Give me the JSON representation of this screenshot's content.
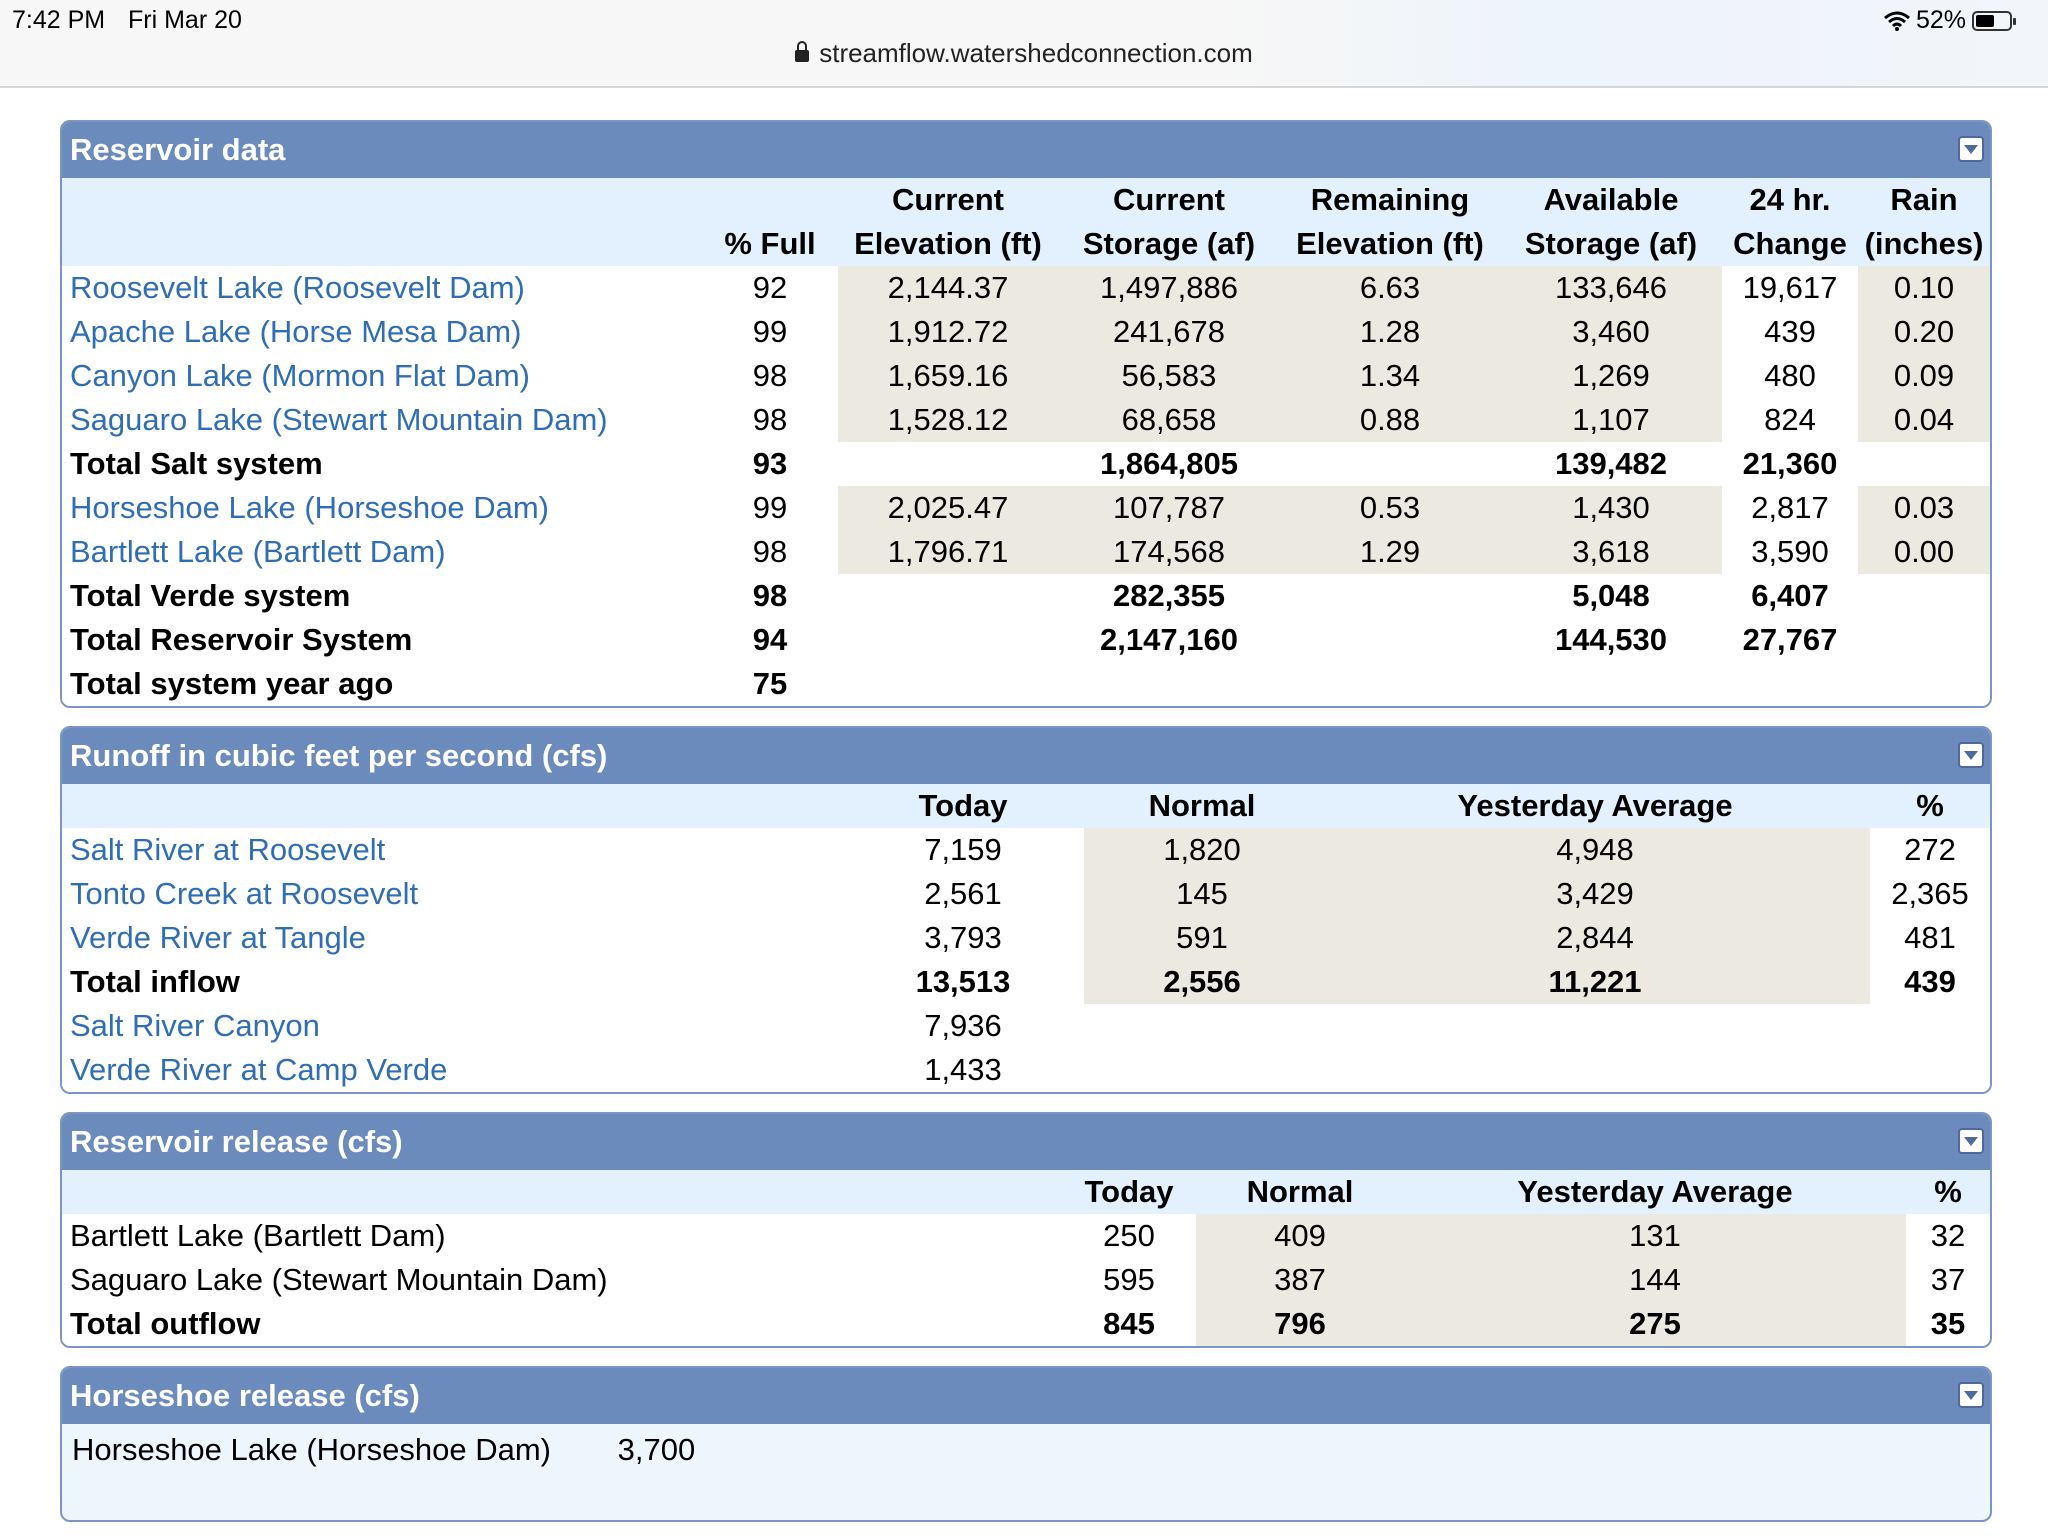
{
  "status": {
    "time": "7:42 PM",
    "date": "Fri Mar 20",
    "battery": "52%",
    "url": "streamflow.watershedconnection.com"
  },
  "reservoir": {
    "title": "Reservoir data",
    "headers": [
      {
        "l1": "",
        "l2": "% Full"
      },
      {
        "l1": "Current",
        "l2": "Elevation (ft)"
      },
      {
        "l1": "Current",
        "l2": "Storage (af)"
      },
      {
        "l1": "Remaining",
        "l2": "Elevation (ft)"
      },
      {
        "l1": "Available",
        "l2": "Storage (af)"
      },
      {
        "l1": "24 hr.",
        "l2": "Change"
      },
      {
        "l1": "Rain",
        "l2": "(inches)"
      }
    ],
    "rows": [
      {
        "name": "Roosevelt Lake (Roosevelt Dam)",
        "link": true,
        "total": false,
        "v": [
          "92",
          "2,144.37",
          "1,497,886",
          "6.63",
          "133,646",
          "19,617",
          "0.10"
        ]
      },
      {
        "name": "Apache Lake (Horse Mesa Dam)",
        "link": true,
        "total": false,
        "v": [
          "99",
          "1,912.72",
          "241,678",
          "1.28",
          "3,460",
          "439",
          "0.20"
        ]
      },
      {
        "name": "Canyon Lake (Mormon Flat Dam)",
        "link": true,
        "total": false,
        "v": [
          "98",
          "1,659.16",
          "56,583",
          "1.34",
          "1,269",
          "480",
          "0.09"
        ]
      },
      {
        "name": "Saguaro Lake (Stewart Mountain Dam)",
        "link": true,
        "total": false,
        "v": [
          "98",
          "1,528.12",
          "68,658",
          "0.88",
          "1,107",
          "824",
          "0.04"
        ]
      },
      {
        "name": "Total Salt system",
        "link": false,
        "total": true,
        "v": [
          "93",
          "",
          "1,864,805",
          "",
          "139,482",
          "21,360",
          ""
        ]
      },
      {
        "name": "Horseshoe Lake (Horseshoe Dam)",
        "link": true,
        "total": false,
        "v": [
          "99",
          "2,025.47",
          "107,787",
          "0.53",
          "1,430",
          "2,817",
          "0.03"
        ]
      },
      {
        "name": "Bartlett Lake (Bartlett Dam)",
        "link": true,
        "total": false,
        "v": [
          "98",
          "1,796.71",
          "174,568",
          "1.29",
          "3,618",
          "3,590",
          "0.00"
        ]
      },
      {
        "name": "Total Verde system",
        "link": false,
        "total": true,
        "v": [
          "98",
          "",
          "282,355",
          "",
          "5,048",
          "6,407",
          ""
        ]
      },
      {
        "name": "Total Reservoir System",
        "link": false,
        "total": true,
        "v": [
          "94",
          "",
          "2,147,160",
          "",
          "144,530",
          "27,767",
          ""
        ]
      },
      {
        "name": "Total system year ago",
        "link": false,
        "total": true,
        "v": [
          "75",
          "",
          "",
          "",
          "",
          "",
          ""
        ]
      }
    ]
  },
  "runoff": {
    "title": "Runoff in cubic feet per second (cfs)",
    "headers": [
      "Today",
      "Normal",
      "Yesterday Average",
      "%"
    ],
    "rows": [
      {
        "name": "Salt River at Roosevelt",
        "link": true,
        "total": false,
        "shade": true,
        "v": [
          "7,159",
          "1,820",
          "4,948",
          "272"
        ]
      },
      {
        "name": "Tonto Creek at Roosevelt",
        "link": true,
        "total": false,
        "shade": true,
        "v": [
          "2,561",
          "145",
          "3,429",
          "2,365"
        ]
      },
      {
        "name": "Verde River at Tangle",
        "link": true,
        "total": false,
        "shade": true,
        "v": [
          "3,793",
          "591",
          "2,844",
          "481"
        ]
      },
      {
        "name": "Total inflow",
        "link": false,
        "total": true,
        "shade": true,
        "v": [
          "13,513",
          "2,556",
          "11,221",
          "439"
        ]
      },
      {
        "name": "Salt River Canyon",
        "link": true,
        "total": false,
        "shade": false,
        "v": [
          "7,936",
          "",
          "",
          ""
        ]
      },
      {
        "name": "Verde River at Camp Verde",
        "link": true,
        "total": false,
        "shade": false,
        "v": [
          "1,433",
          "",
          "",
          ""
        ]
      }
    ]
  },
  "release": {
    "title": "Reservoir release (cfs)",
    "headers": [
      "Today",
      "Normal",
      "Yesterday Average",
      "%"
    ],
    "rows": [
      {
        "name": "Bartlett Lake (Bartlett Dam)",
        "total": false,
        "v": [
          "250",
          "409",
          "131",
          "32"
        ]
      },
      {
        "name": "Saguaro Lake (Stewart Mountain Dam)",
        "total": false,
        "v": [
          "595",
          "387",
          "144",
          "37"
        ]
      },
      {
        "name": "Total outflow",
        "total": true,
        "v": [
          "845",
          "796",
          "275",
          "35"
        ]
      }
    ]
  },
  "horseshoe": {
    "title": "Horseshoe release (cfs)",
    "name": "Horseshoe Lake (Horseshoe Dam)",
    "value": "3,700"
  }
}
